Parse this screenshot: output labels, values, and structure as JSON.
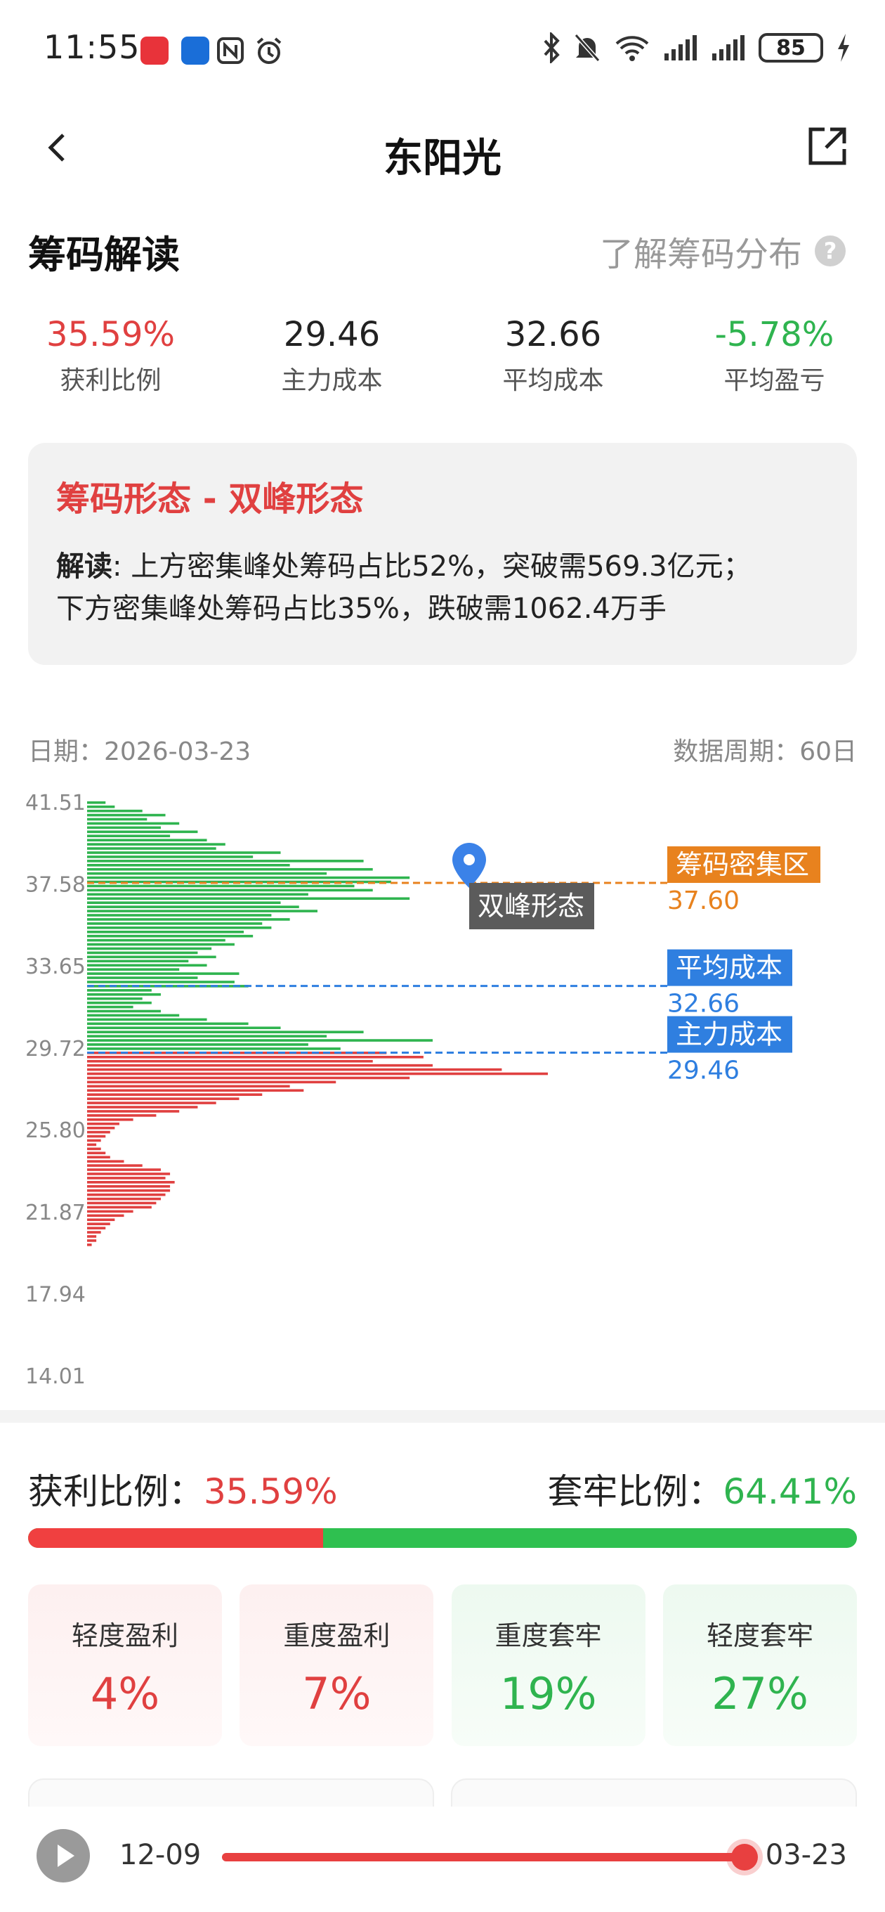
{
  "status_bar": {
    "time": "11:55",
    "battery": "85",
    "icons": [
      "huawei-app-icon",
      "message-app-icon",
      "nfc-icon",
      "alarm-icon",
      "bluetooth-icon",
      "mute-icon",
      "wifi-icon",
      "signal-icon",
      "signal-icon",
      "battery-icon",
      "charging-icon"
    ]
  },
  "header": {
    "title": "东阳光"
  },
  "section": {
    "title": "筹码解读",
    "learn_link": "了解筹码分布",
    "help_icon": "?"
  },
  "stats": [
    {
      "value": "35.59%",
      "label": "获利比例",
      "color": "#e04040"
    },
    {
      "value": "29.46",
      "label": "主力成本",
      "color": "#222222"
    },
    {
      "value": "32.66",
      "label": "平均成本",
      "color": "#222222"
    },
    {
      "value": "-5.78%",
      "label": "平均盈亏",
      "color": "#2fb44f"
    }
  ],
  "pattern": {
    "title": "筹码形态 - 双峰形态",
    "read_label": "解读",
    "read_text_1": ": 上方密集峰处筹码占比52%，突破需569.3亿元；",
    "read_text_2": "下方密集峰处筹码占比35%，跌破需1062.4万手"
  },
  "chart_meta": {
    "date_label": "日期：2026-03-23",
    "period_label": "数据周期：60日"
  },
  "chart_data": {
    "type": "bar",
    "orientation": "horizontal",
    "y_ticks": [
      "41.51",
      "37.58",
      "33.65",
      "29.72",
      "25.80",
      "21.87",
      "17.94",
      "14.01"
    ],
    "ylim": [
      14.01,
      41.51
    ],
    "xlim": [
      0,
      1
    ],
    "current_price": 29.46,
    "colors": {
      "above": "#2fb44f",
      "below": "#e04040"
    },
    "price_step": 0.2,
    "bars": [
      [
        41.45,
        0.04
      ],
      [
        41.25,
        0.06
      ],
      [
        41.05,
        0.12
      ],
      [
        40.85,
        0.17
      ],
      [
        40.65,
        0.13
      ],
      [
        40.45,
        0.2
      ],
      [
        40.25,
        0.16
      ],
      [
        40.05,
        0.24
      ],
      [
        39.85,
        0.18
      ],
      [
        39.65,
        0.26
      ],
      [
        39.45,
        0.3
      ],
      [
        39.25,
        0.28
      ],
      [
        39.05,
        0.42
      ],
      [
        38.85,
        0.36
      ],
      [
        38.65,
        0.6
      ],
      [
        38.45,
        0.44
      ],
      [
        38.25,
        0.62
      ],
      [
        38.05,
        0.52
      ],
      [
        37.85,
        0.7
      ],
      [
        37.65,
        0.66
      ],
      [
        37.45,
        0.58
      ],
      [
        37.25,
        0.62
      ],
      [
        37.05,
        0.48
      ],
      [
        36.85,
        0.7
      ],
      [
        36.65,
        0.42
      ],
      [
        36.45,
        0.46
      ],
      [
        36.25,
        0.5
      ],
      [
        36.05,
        0.4
      ],
      [
        35.85,
        0.44
      ],
      [
        35.65,
        0.38
      ],
      [
        35.45,
        0.4
      ],
      [
        35.25,
        0.34
      ],
      [
        35.05,
        0.36
      ],
      [
        34.85,
        0.3
      ],
      [
        34.65,
        0.32
      ],
      [
        34.45,
        0.27
      ],
      [
        34.25,
        0.24
      ],
      [
        34.05,
        0.28
      ],
      [
        33.85,
        0.22
      ],
      [
        33.65,
        0.26
      ],
      [
        33.45,
        0.2
      ],
      [
        33.25,
        0.33
      ],
      [
        33.05,
        0.24
      ],
      [
        32.85,
        0.32
      ],
      [
        32.65,
        0.35
      ],
      [
        32.45,
        0.14
      ],
      [
        32.25,
        0.16
      ],
      [
        32.05,
        0.12
      ],
      [
        31.85,
        0.14
      ],
      [
        31.65,
        0.1
      ],
      [
        31.45,
        0.16
      ],
      [
        31.25,
        0.2
      ],
      [
        31.05,
        0.26
      ],
      [
        30.85,
        0.35
      ],
      [
        30.65,
        0.42
      ],
      [
        30.45,
        0.6
      ],
      [
        30.25,
        0.52
      ],
      [
        30.05,
        0.75
      ],
      [
        29.85,
        0.48
      ],
      [
        29.65,
        0.55
      ],
      [
        29.45,
        0.65
      ],
      [
        29.25,
        0.73
      ],
      [
        29.05,
        0.62
      ],
      [
        28.85,
        0.75
      ],
      [
        28.65,
        0.9
      ],
      [
        28.45,
        1.0
      ],
      [
        28.25,
        0.7
      ],
      [
        28.05,
        0.54
      ],
      [
        27.85,
        0.44
      ],
      [
        27.65,
        0.47
      ],
      [
        27.45,
        0.38
      ],
      [
        27.25,
        0.33
      ],
      [
        27.05,
        0.28
      ],
      [
        26.85,
        0.24
      ],
      [
        26.65,
        0.2
      ],
      [
        26.45,
        0.15
      ],
      [
        26.25,
        0.1
      ],
      [
        26.05,
        0.07
      ],
      [
        25.85,
        0.06
      ],
      [
        25.65,
        0.05
      ],
      [
        25.45,
        0.04
      ],
      [
        25.25,
        0.03
      ],
      [
        25.05,
        0.02
      ],
      [
        24.85,
        0.03
      ],
      [
        24.65,
        0.04
      ],
      [
        24.45,
        0.05
      ],
      [
        24.25,
        0.08
      ],
      [
        24.05,
        0.12
      ],
      [
        23.85,
        0.16
      ],
      [
        23.65,
        0.18
      ],
      [
        23.45,
        0.17
      ],
      [
        23.25,
        0.19
      ],
      [
        23.05,
        0.18
      ],
      [
        22.85,
        0.18
      ],
      [
        22.65,
        0.17
      ],
      [
        22.45,
        0.16
      ],
      [
        22.25,
        0.15
      ],
      [
        22.05,
        0.14
      ],
      [
        21.85,
        0.1
      ],
      [
        21.65,
        0.08
      ],
      [
        21.45,
        0.06
      ],
      [
        21.25,
        0.05
      ],
      [
        21.05,
        0.04
      ],
      [
        20.85,
        0.03
      ],
      [
        20.65,
        0.02
      ],
      [
        20.45,
        0.02
      ],
      [
        20.25,
        0.01
      ]
    ],
    "markers": [
      {
        "label": "筹码密集区",
        "value": 37.6,
        "value_label": "37.60",
        "color": "#e8821e"
      },
      {
        "label": "平均成本",
        "value": 32.66,
        "value_label": "32.66",
        "color": "#2f7fe0"
      },
      {
        "label": "主力成本",
        "value": 29.46,
        "value_label": "29.46",
        "color": "#2f7fe0"
      }
    ],
    "callout": {
      "label": "双峰形态",
      "value": 37.6
    }
  },
  "ratio": {
    "profit_label": "获利比例：",
    "profit_value": "35.59%",
    "trapped_label": "套牢比例：",
    "trapped_value": "64.41%",
    "profit_fraction": 0.3559
  },
  "cards": [
    {
      "label": "轻度盈利",
      "value": "4%",
      "kind": "profit"
    },
    {
      "label": "重度盈利",
      "value": "7%",
      "kind": "profit"
    },
    {
      "label": "重度套牢",
      "value": "19%",
      "kind": "loss"
    },
    {
      "label": "轻度套牢",
      "value": "27%",
      "kind": "loss"
    }
  ],
  "player": {
    "start_date": "12-09",
    "end_date": "03-23",
    "progress": 1.0
  }
}
